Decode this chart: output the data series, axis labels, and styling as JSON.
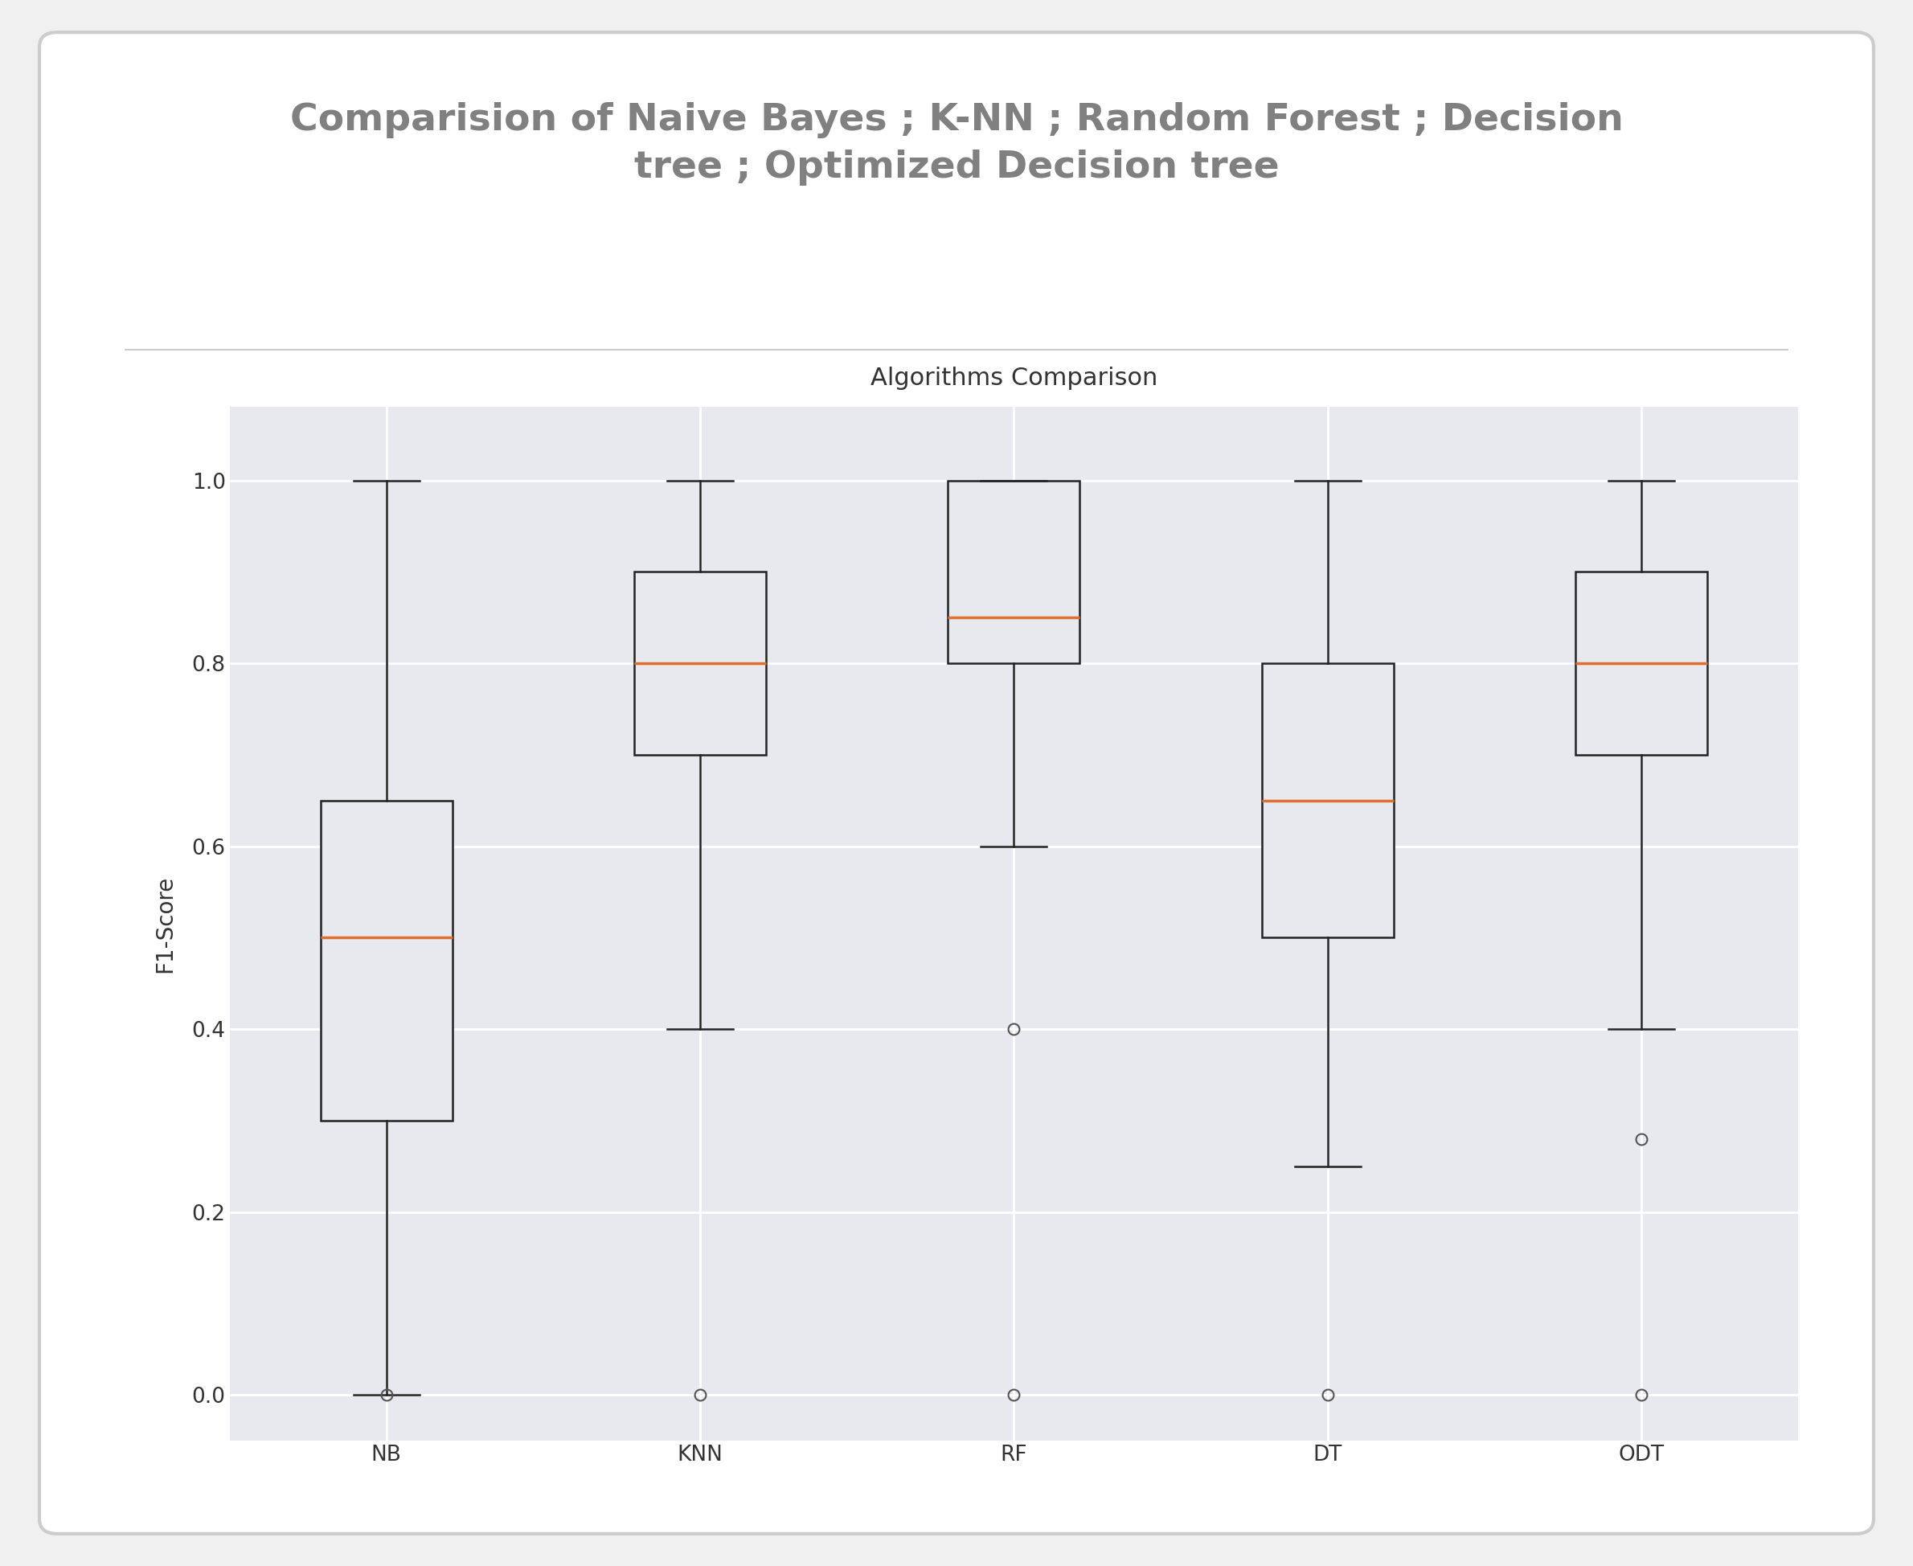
{
  "title_main": "Comparision of Naive Bayes ; K-NN ; Random Forest ; Decision\ntree ; Optimized Decision tree",
  "title_plot": "Algorithms Comparison",
  "ylabel": "F1-Score",
  "categories": [
    "NB",
    "KNN",
    "RF",
    "DT",
    "ODT"
  ],
  "box_data": {
    "NB": {
      "whislo": 0.0,
      "q1": 0.3,
      "med": 0.5,
      "q3": 0.65,
      "whishi": 1.0,
      "fliers": [
        0.0
      ]
    },
    "KNN": {
      "whislo": 0.4,
      "q1": 0.7,
      "med": 0.8,
      "q3": 0.9,
      "whishi": 1.0,
      "fliers": [
        0.0
      ]
    },
    "RF": {
      "whislo": 0.6,
      "q1": 0.8,
      "med": 0.85,
      "q3": 1.0,
      "whishi": 1.0,
      "fliers": [
        0.0,
        0.4
      ]
    },
    "DT": {
      "whislo": 0.25,
      "q1": 0.5,
      "med": 0.65,
      "q3": 0.8,
      "whishi": 1.0,
      "fliers": [
        0.0
      ]
    },
    "ODT": {
      "whislo": 0.4,
      "q1": 0.7,
      "med": 0.8,
      "q3": 0.9,
      "whishi": 1.0,
      "fliers": [
        0.0,
        0.28
      ]
    }
  },
  "background_outer": "#f0f0f0",
  "background_plot": "#e8e8ef",
  "background_card": "#ffffff",
  "median_color": "#e07030",
  "box_facecolor": "#e8e8ef",
  "whisker_color": "#222222",
  "flier_color": "#555555",
  "grid_color": "#ffffff",
  "title_color": "#808080",
  "axis_label_color": "#333333",
  "separator_color": "#cccccc",
  "title_fontsize": 34,
  "plot_title_fontsize": 22,
  "tick_fontsize": 19,
  "ylabel_fontsize": 20,
  "ylim": [
    -0.05,
    1.08
  ],
  "yticks": [
    0.0,
    0.2,
    0.4,
    0.6,
    0.8,
    1.0
  ]
}
